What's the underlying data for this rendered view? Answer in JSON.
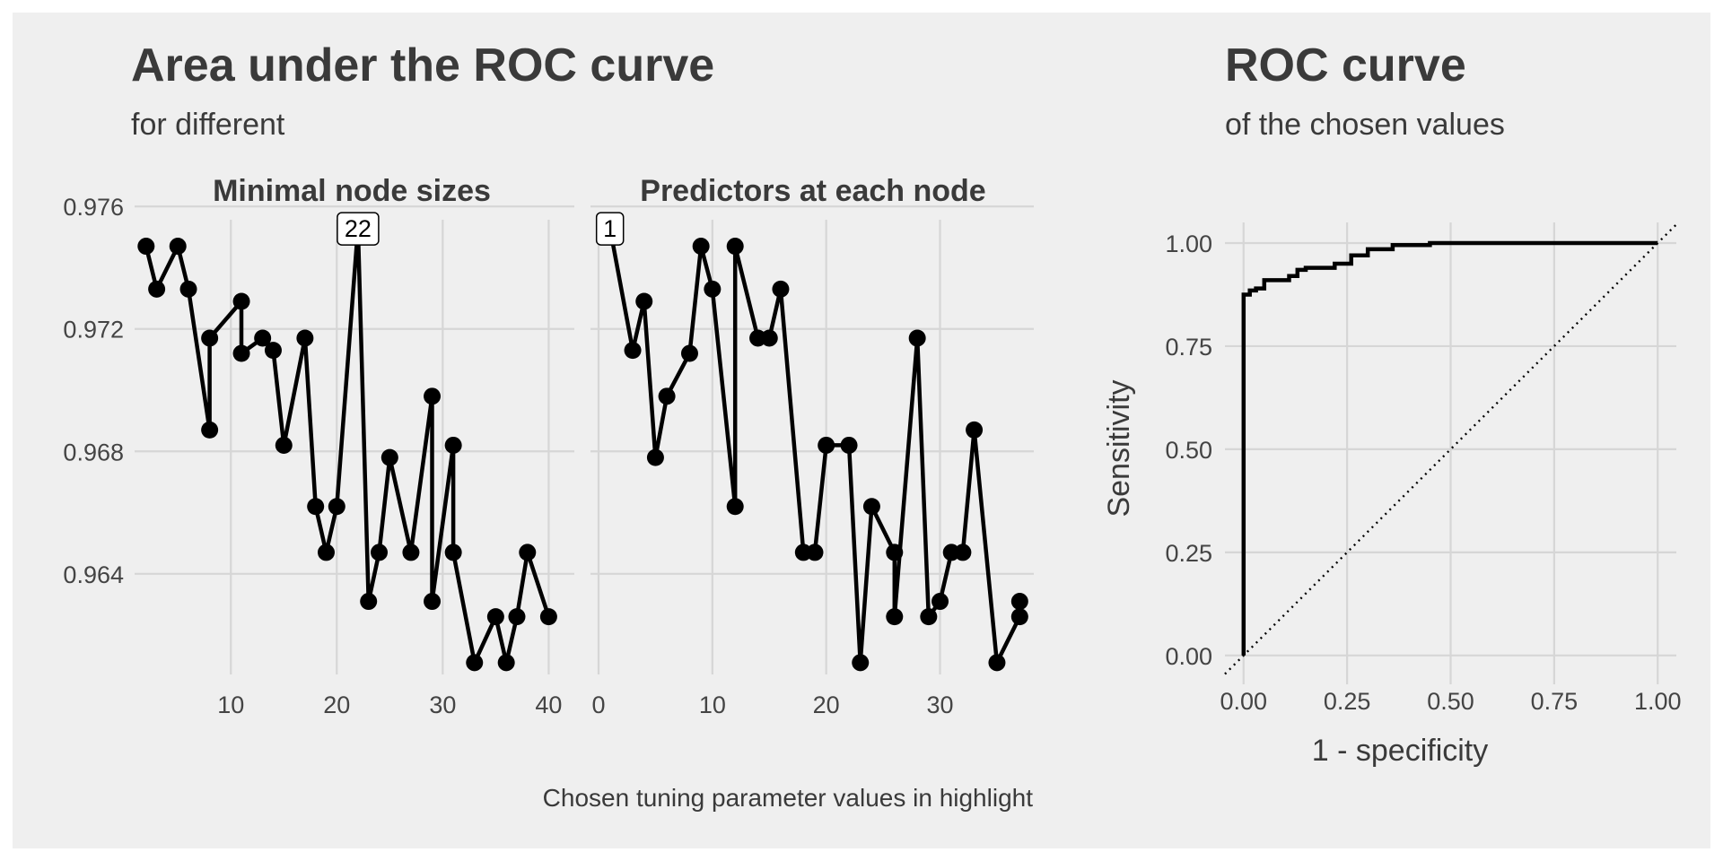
{
  "colors": {
    "background": "#efefef",
    "grid": "#d6d6d6",
    "text": "#3a3a3a",
    "line": "#000000"
  },
  "left": {
    "title": "Area under the ROC curve",
    "subtitle": "for different",
    "caption": "Chosen tuning parameter values in highlight"
  },
  "right": {
    "title": "ROC curve",
    "subtitle": "of the chosen values"
  },
  "chart_data": [
    {
      "type": "line",
      "title": "Minimal node sizes",
      "xlabel": "",
      "ylabel": "",
      "ylim": [
        0.9613,
        0.9758
      ],
      "yticks": [
        0.964,
        0.968,
        0.972,
        0.976
      ],
      "ytick_labels": [
        "0.964",
        "0.968",
        "0.972",
        "0.976"
      ],
      "xticks": [
        10,
        20,
        30,
        40
      ],
      "xtick_labels": [
        "10",
        "20",
        "30",
        "40"
      ],
      "highlight": {
        "x": 22,
        "y": 0.9753,
        "label": "22"
      },
      "points": [
        [
          2,
          0.9747
        ],
        [
          3,
          0.9733
        ],
        [
          5,
          0.9747
        ],
        [
          6,
          0.9733
        ],
        [
          8,
          0.9687
        ],
        [
          8,
          0.9717
        ],
        [
          11,
          0.9729
        ],
        [
          11,
          0.9712
        ],
        [
          13,
          0.9717
        ],
        [
          14,
          0.9713
        ],
        [
          15,
          0.9682
        ],
        [
          17,
          0.9717
        ],
        [
          18,
          0.9662
        ],
        [
          19,
          0.9647
        ],
        [
          20,
          0.9662
        ],
        [
          22,
          0.9753
        ],
        [
          23,
          0.9631
        ],
        [
          24,
          0.9647
        ],
        [
          25,
          0.9678
        ],
        [
          27,
          0.9647
        ],
        [
          29,
          0.9698
        ],
        [
          29,
          0.9631
        ],
        [
          31,
          0.9682
        ],
        [
          31,
          0.9647
        ],
        [
          33,
          0.9611
        ],
        [
          35,
          0.9626
        ],
        [
          36,
          0.9611
        ],
        [
          37,
          0.9626
        ],
        [
          38,
          0.9647
        ],
        [
          40,
          0.9626
        ]
      ]
    },
    {
      "type": "line",
      "title": "Predictors at each node",
      "xlabel": "",
      "ylabel": "",
      "ylim": [
        0.9613,
        0.9758
      ],
      "xticks": [
        0,
        10,
        20,
        30
      ],
      "xtick_labels": [
        "0",
        "10",
        "20",
        "30"
      ],
      "highlight": {
        "x": 1,
        "y": 0.9753,
        "label": "1"
      },
      "points": [
        [
          1,
          0.9753
        ],
        [
          3,
          0.9713
        ],
        [
          4,
          0.9729
        ],
        [
          5,
          0.9678
        ],
        [
          6,
          0.9698
        ],
        [
          8,
          0.9712
        ],
        [
          9,
          0.9747
        ],
        [
          10,
          0.9733
        ],
        [
          12,
          0.9662
        ],
        [
          12,
          0.9747
        ],
        [
          14,
          0.9717
        ],
        [
          15,
          0.9717
        ],
        [
          16,
          0.9733
        ],
        [
          18,
          0.9647
        ],
        [
          19,
          0.9647
        ],
        [
          20,
          0.9682
        ],
        [
          22,
          0.9682
        ],
        [
          23,
          0.9611
        ],
        [
          24,
          0.9662
        ],
        [
          26,
          0.9647
        ],
        [
          26,
          0.9626
        ],
        [
          28,
          0.9717
        ],
        [
          29,
          0.9626
        ],
        [
          30,
          0.9631
        ],
        [
          31,
          0.9647
        ],
        [
          32,
          0.9647
        ],
        [
          33,
          0.9687
        ],
        [
          35,
          0.9611
        ],
        [
          37,
          0.9626
        ],
        [
          37,
          0.9631
        ]
      ]
    },
    {
      "type": "line",
      "title": "",
      "xlabel": "1 - specificity",
      "ylabel": "Sensitivity",
      "xlim": [
        -0.045,
        1.045
      ],
      "ylim": [
        -0.07,
        1.05
      ],
      "xticks": [
        0,
        0.25,
        0.5,
        0.75,
        1
      ],
      "xtick_labels": [
        "0.00",
        "0.25",
        "0.50",
        "0.75",
        "1.00"
      ],
      "yticks": [
        0,
        0.25,
        0.5,
        0.75,
        1
      ],
      "ytick_labels": [
        "0.00",
        "0.25",
        "0.50",
        "0.75",
        "1.00"
      ],
      "reference_line": "diagonal dotted",
      "roc_points": [
        [
          0,
          0
        ],
        [
          0,
          0.875
        ],
        [
          0.015,
          0.875
        ],
        [
          0.015,
          0.885
        ],
        [
          0.03,
          0.885
        ],
        [
          0.03,
          0.89
        ],
        [
          0.05,
          0.89
        ],
        [
          0.05,
          0.91
        ],
        [
          0.11,
          0.91
        ],
        [
          0.11,
          0.92
        ],
        [
          0.13,
          0.92
        ],
        [
          0.13,
          0.935
        ],
        [
          0.15,
          0.935
        ],
        [
          0.15,
          0.94
        ],
        [
          0.22,
          0.94
        ],
        [
          0.22,
          0.95
        ],
        [
          0.26,
          0.95
        ],
        [
          0.26,
          0.97
        ],
        [
          0.3,
          0.97
        ],
        [
          0.3,
          0.985
        ],
        [
          0.36,
          0.985
        ],
        [
          0.36,
          0.995
        ],
        [
          0.45,
          0.995
        ],
        [
          0.45,
          1
        ],
        [
          1,
          1
        ]
      ]
    }
  ]
}
